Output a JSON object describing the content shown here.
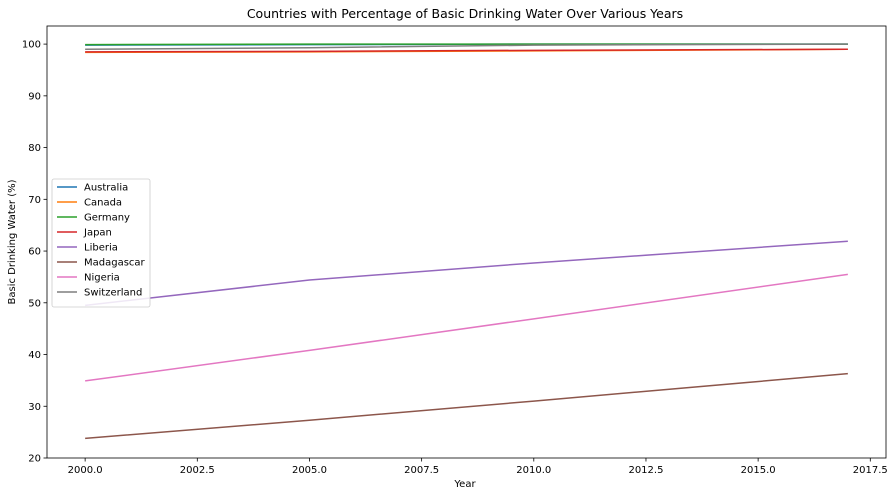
{
  "chart_data": {
    "type": "line",
    "title": "Countries with Percentage of Basic Drinking Water Over Various Years",
    "xlabel": "Year",
    "ylabel": "Basic Drinking Water (%)",
    "xlim": [
      1999.15,
      2017.85
    ],
    "ylim": [
      20,
      103.5
    ],
    "xticks": [
      2000,
      2002.5,
      2005,
      2007.5,
      2010,
      2012.5,
      2015,
      2017.5
    ],
    "xtick_labels": [
      "2000.0",
      "2002.5",
      "2005.0",
      "2007.5",
      "2010.0",
      "2012.5",
      "2015.0",
      "2017.5"
    ],
    "yticks": [
      20,
      30,
      40,
      50,
      60,
      70,
      80,
      90,
      100
    ],
    "ytick_labels": [
      "20",
      "30",
      "40",
      "50",
      "60",
      "70",
      "80",
      "90",
      "100"
    ],
    "grid": false,
    "legend_position": "center-left",
    "x": [
      2000,
      2005,
      2010,
      2017
    ],
    "series": [
      {
        "name": "Australia",
        "color": "#1f77b4",
        "values": [
          99.8,
          99.9,
          100,
          100
        ]
      },
      {
        "name": "Canada",
        "color": "#ff7f0e",
        "values": [
          98.4,
          98.5,
          98.7,
          99
        ]
      },
      {
        "name": "Germany",
        "color": "#2ca02c",
        "values": [
          99.9,
          100,
          100,
          100
        ]
      },
      {
        "name": "Japan",
        "color": "#d62728",
        "values": [
          98.5,
          98.6,
          98.8,
          99
        ]
      },
      {
        "name": "Liberia",
        "color": "#9467bd",
        "values": [
          49.5,
          54.4,
          57.7,
          61.9
        ]
      },
      {
        "name": "Madagascar",
        "color": "#8c564b",
        "values": [
          23.8,
          27.3,
          31,
          36.3
        ]
      },
      {
        "name": "Nigeria",
        "color": "#e377c2",
        "values": [
          34.9,
          40.8,
          46.9,
          55.5
        ]
      },
      {
        "name": "Switzerland",
        "color": "#7f7f7f",
        "values": [
          99,
          99.3,
          99.8,
          100
        ]
      }
    ]
  }
}
